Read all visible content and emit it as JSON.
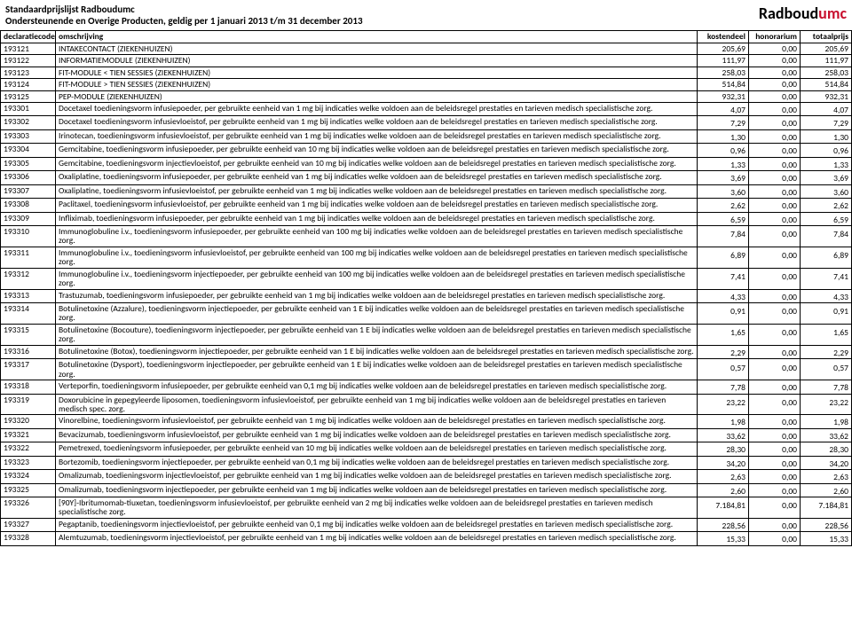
{
  "header": {
    "title1": "Standaardprijslijst Radboudumc",
    "title2": "Ondersteunende en Overige Producten, geldig per 1 januari 2013 t/m 31 december 2013",
    "logo_part1": "Radboud",
    "logo_part2": "umc",
    "logo_color1": "#000000",
    "logo_color2": "#c8102e"
  },
  "columns": {
    "code": "declaratiecode",
    "desc": "omschrijving",
    "kost": "kostendeel",
    "hon": "honorarium",
    "tot": "totaalprijs"
  },
  "rows": [
    {
      "code": "193121",
      "desc": "INTAKECONTACT (ZIEKENHUIZEN)",
      "k": "205,69",
      "h": "0,00",
      "t": "205,69",
      "inline": true
    },
    {
      "code": "193122",
      "desc": "INFORMATIEMODULE (ZIEKENHUIZEN)",
      "k": "111,97",
      "h": "0,00",
      "t": "111,97",
      "inline": true
    },
    {
      "code": "193123",
      "desc": "FIT-MODULE < TIEN SESSIES (ZIEKENHUIZEN)",
      "k": "258,03",
      "h": "0,00",
      "t": "258,03",
      "inline": true
    },
    {
      "code": "193124",
      "desc": "FIT-MODULE > TIEN SESSIES (ZIEKENHUIZEN)",
      "k": "514,84",
      "h": "0,00",
      "t": "514,84",
      "inline": true
    },
    {
      "code": "193125",
      "desc": "PEP-MODULE (ZIEKENHUIZEN)",
      "k": "932,31",
      "h": "0,00",
      "t": "932,31",
      "inline": true
    },
    {
      "code": "193301",
      "desc": "Docetaxel toedieningsvorm infusiepoeder, per gebruikte eenheid van 1 mg bij indicaties welke voldoen aan de beleidsregel prestaties en tarieven medisch specialistische zorg.",
      "k": "4,07",
      "h": "0,00",
      "t": "4,07"
    },
    {
      "code": "193302",
      "desc": "Docetaxel toedieningsvorm infusievloeistof, per gebruikte eenheid van 1 mg bij indicaties welke voldoen aan de beleidsregel prestaties en tarieven medisch specialistische zorg.",
      "k": "7,29",
      "h": "0,00",
      "t": "7,29"
    },
    {
      "code": "193303",
      "desc": "Irinotecan, toedieningsvorm infusievloeistof, per gebruikte eenheid van 1 mg bij indicaties welke voldoen aan de beleidsregel prestaties en tarieven medisch specialistische zorg.",
      "k": "1,30",
      "h": "0,00",
      "t": "1,30"
    },
    {
      "code": "193304",
      "desc": "Gemcitabine, toedieningsvorm infusiepoeder, per gebruikte eenheid van 10 mg bij indicaties welke voldoen aan de beleidsregel prestaties en tarieven medisch specialistische zorg.",
      "k": "0,96",
      "h": "0,00",
      "t": "0,96"
    },
    {
      "code": "193305",
      "desc": "Gemcitabine, toedieningsvorm injectievloeistof, per gebruikte eenheid van 10 mg bij indicaties welke voldoen aan de beleidsregel prestaties en tarieven medisch specialistische zorg.",
      "k": "1,33",
      "h": "0,00",
      "t": "1,33"
    },
    {
      "code": "193306",
      "desc": "Oxaliplatine, toedieningsvorm infusiepoeder, per gebruikte eenheid van 1 mg bij indicaties welke voldoen aan de beleidsregel prestaties en tarieven medisch specialistische zorg.",
      "k": "3,69",
      "h": "0,00",
      "t": "3,69"
    },
    {
      "code": "193307",
      "desc": "Oxaliplatine, toedieningsvorm infusievloeistof, per gebruikte eenheid van 1 mg bij indicaties welke voldoen aan de beleidsregel prestaties en tarieven medisch specialistische zorg.",
      "k": "3,60",
      "h": "0,00",
      "t": "3,60"
    },
    {
      "code": "193308",
      "desc": "Paclitaxel, toedieningsvorm infusievloeistof, per gebruikte eenheid van 1 mg bij indicaties welke voldoen aan de beleidsregel prestaties en tarieven medisch specialistische zorg.",
      "k": "2,62",
      "h": "0,00",
      "t": "2,62"
    },
    {
      "code": "193309",
      "desc": "Infliximab, toedieningsvorm infusiepoeder, per gebruikte eenheid van 1 mg bij indicaties welke voldoen aan de beleidsregel prestaties en tarieven medisch specialistische zorg.",
      "k": "6,59",
      "h": "0,00",
      "t": "6,59"
    },
    {
      "code": "193310",
      "desc": "Immunoglobuline i.v., toedieningsvorm infusiepoeder, per gebruikte eenheid van 100 mg bij indicaties welke voldoen aan de beleidsregel prestaties en tarieven medisch specialistische zorg.",
      "k": "7,84",
      "h": "0,00",
      "t": "7,84"
    },
    {
      "code": "193311",
      "desc": "Immunoglobuline i.v., toedieningsvorm infusievloeistof, per gebruikte eenheid van 100 mg bij indicaties welke voldoen aan de beleidsregel prestaties en tarieven medisch specialistische zorg.",
      "k": "6,89",
      "h": "0,00",
      "t": "6,89"
    },
    {
      "code": "193312",
      "desc": "Immunoglobuline i.v., toedieningsvorm injectiepoeder, per gebruikte eenheid van 100 mg bij indicaties welke voldoen aan de beleidsregel prestaties en tarieven medisch specialistische zorg.",
      "k": "7,41",
      "h": "0,00",
      "t": "7,41"
    },
    {
      "code": "193313",
      "desc": "Trastuzumab, toedieningsvorm infusiepoeder, per gebruikte eenheid van 1 mg bij indicaties welke voldoen aan de beleidsregel prestaties en tarieven medisch specialistische zorg.",
      "k": "4,33",
      "h": "0,00",
      "t": "4,33"
    },
    {
      "code": "193314",
      "desc": "Botulinetoxine (Azzalure), toedieningsvorm injectiepoeder, per gebruikte eenheid van 1 E bij indicaties welke voldoen aan de beleidsregel prestaties en tarieven medisch specialistische zorg.",
      "k": "0,91",
      "h": "0,00",
      "t": "0,91"
    },
    {
      "code": "193315",
      "desc": "Botulinetoxine (Bocouture), toedieningsvorm injectiepoeder, per gebruikte eenheid van 1 E bij indicaties welke voldoen aan de beleidsregel prestaties en tarieven medisch specialistische zorg.",
      "k": "1,65",
      "h": "0,00",
      "t": "1,65"
    },
    {
      "code": "193316",
      "desc": "Botulinetoxine (Botox), toedieningsvorm injectiepoeder, per gebruikte eenheid van 1 E bij indicaties welke voldoen aan de beleidsregel prestaties en tarieven medisch specialistische zorg.",
      "k": "2,29",
      "h": "0,00",
      "t": "2,29"
    },
    {
      "code": "193317",
      "desc": "Botulinetoxine (Dysport), toedieningsvorm injectiepoeder, per gebruikte eenheid van 1 E bij indicaties welke voldoen aan de beleidsregel prestaties en tarieven medisch specialistische zorg.",
      "k": "0,57",
      "h": "0,00",
      "t": "0,57"
    },
    {
      "code": "193318",
      "desc": "Verteporfin, toedieningsvorm infusiepoeder, per gebruikte eenheid van 0,1 mg bij indicaties welke voldoen aan de beleidsregel prestaties en tarieven medisch specialistische zorg.",
      "k": "7,78",
      "h": "0,00",
      "t": "7,78"
    },
    {
      "code": "193319",
      "desc": "Doxorubicine in gepegyleerde liposomen, toedieningsvorm infusievloeistof, per gebruikte eenheid van 1 mg bij indicaties welke voldoen aan de beleidsregel prestaties en tarieven medisch spec. zorg.",
      "k": "23,22",
      "h": "0,00",
      "t": "23,22"
    },
    {
      "code": "193320",
      "desc": "Vinorelbine, toedieningsvorm infusievloeistof, per gebruikte eenheid van 1 mg bij indicaties welke voldoen aan de beleidsregel prestaties en tarieven medisch specialistische zorg.",
      "k": "1,98",
      "h": "0,00",
      "t": "1,98"
    },
    {
      "code": "193321",
      "desc": "Bevacizumab, toedieningsvorm infusievloeistof, per gebruikte eenheid van 1 mg bij indicaties welke voldoen aan de beleidsregel prestaties en tarieven medisch specialistische zorg.",
      "k": "33,62",
      "h": "0,00",
      "t": "33,62"
    },
    {
      "code": "193322",
      "desc": "Pemetrexed, toedieningsvorm infusiepoeder, per gebruikte eenheid van 10 mg bij indicaties welke voldoen aan de beleidsregel prestaties en tarieven medisch specialistische zorg.",
      "k": "28,30",
      "h": "0,00",
      "t": "28,30"
    },
    {
      "code": "193323",
      "desc": "Bortezomib, toedieningsvorm injectiepoeder, per gebruikte eenheid van 0,1 mg bij indicaties welke voldoen aan de beleidsregel prestaties en tarieven medisch specialistische zorg.",
      "k": "34,20",
      "h": "0,00",
      "t": "34,20"
    },
    {
      "code": "193324",
      "desc": "Omalizumab, toedieningsvorm injectievloeistof, per gebruikte eenheid van 1 mg bij indicaties welke voldoen aan de beleidsregel prestaties en tarieven medisch specialistische zorg.",
      "k": "2,63",
      "h": "0,00",
      "t": "2,63"
    },
    {
      "code": "193325",
      "desc": "Omalizumab, toedieningsvorm injectiepoeder, per gebruikte eenheid van 1 mg bij indicaties welke voldoen aan de beleidsregel prestaties en tarieven medisch specialistische zorg.",
      "k": "2,60",
      "h": "0,00",
      "t": "2,60"
    },
    {
      "code": "193326",
      "desc": "[90Y]-Ibritumomab-tiuxetan, toedieningsvorm infusievloeistof, per gebruikte eenheid van 2 mg bij indicaties welke voldoen aan de beleidsregel prestaties en tarieven medisch specialistische zorg.",
      "k": "7.184,81",
      "h": "0,00",
      "t": "7.184,81"
    },
    {
      "code": "193327",
      "desc": "Pegaptanib, toedieningsvorm injectievloeistof, per gebruikte eenheid van 0,1 mg bij indicaties welke voldoen aan de beleidsregel prestaties en tarieven medisch specialistische zorg.",
      "k": "228,56",
      "h": "0,00",
      "t": "228,56"
    },
    {
      "code": "193328",
      "desc": "Alemtuzumab, toedieningsvorm injectievloeistof, per gebruikte eenheid van 1 mg bij indicaties welke voldoen aan de beleidsregel prestaties en tarieven medisch specialistische zorg.",
      "k": "15,33",
      "h": "0,00",
      "t": "15,33"
    }
  ]
}
